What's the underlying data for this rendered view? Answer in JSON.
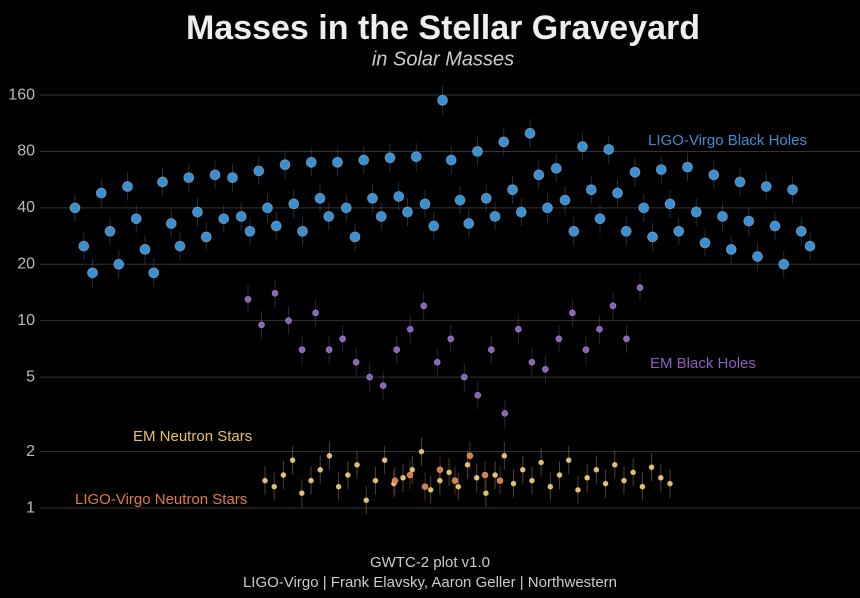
{
  "chart_data": {
    "type": "scatter",
    "title": "Masses in the Stellar Graveyard",
    "subtitle": "in Solar Masses",
    "footer": [
      "GWTC-2 plot v1.0",
      "LIGO-Virgo | Frank Elavsky, Aaron Geller | Northwestern"
    ],
    "yscale": "log",
    "ylim": [
      0.4,
      200
    ],
    "yticks": [
      1,
      2,
      5,
      10,
      20,
      40,
      80,
      160
    ],
    "grid": true,
    "series": [
      {
        "name": "LIGO-Virgo Black Holes",
        "color": "#3a8fd0",
        "values": [
          40,
          25,
          18,
          48,
          30,
          20,
          52,
          35,
          24,
          18,
          55,
          33,
          25,
          58,
          38,
          28,
          60,
          35,
          58,
          36,
          30,
          63,
          40,
          32,
          68,
          42,
          30,
          70,
          45,
          36,
          70,
          40,
          28,
          72,
          45,
          36,
          74,
          46,
          38,
          75,
          42,
          32,
          150,
          72,
          44,
          33,
          80,
          45,
          36,
          90,
          50,
          38,
          100,
          60,
          40,
          65,
          44,
          30,
          85,
          50,
          35,
          82,
          48,
          30,
          62,
          40,
          28,
          64,
          42,
          30,
          66,
          38,
          26,
          60,
          36,
          24,
          55,
          34,
          22,
          52,
          32,
          20,
          50,
          30,
          25
        ]
      },
      {
        "name": "EM Black Holes",
        "color": "#8a5fc0",
        "values": [
          13,
          9.5,
          14,
          10,
          7,
          11,
          7,
          8,
          6,
          5,
          4.5,
          7,
          9,
          12,
          6,
          8,
          5,
          4,
          7,
          3.2,
          9,
          6,
          5.5,
          8,
          11,
          7,
          9,
          12,
          8,
          15
        ]
      },
      {
        "name": "EM Neutron Stars",
        "color": "#e8c060",
        "values": [
          1.4,
          1.3,
          1.5,
          1.8,
          1.2,
          1.4,
          1.6,
          1.9,
          1.3,
          1.5,
          1.7,
          1.1,
          1.4,
          1.8,
          1.35,
          1.45,
          1.6,
          2.0,
          1.25,
          1.4,
          1.55,
          1.3,
          1.7,
          1.45,
          1.2,
          1.5,
          1.9,
          1.35,
          1.6,
          1.4,
          1.75,
          1.3,
          1.5,
          1.8,
          1.25,
          1.45,
          1.6,
          1.35,
          1.7,
          1.4,
          1.55,
          1.3,
          1.65,
          1.45,
          1.35
        ]
      },
      {
        "name": "LIGO-Virgo Neutron Stars",
        "color": "#e07a40",
        "values": [
          1.4,
          1.5,
          1.3,
          1.6,
          1.4,
          1.9,
          1.5,
          1.4
        ]
      }
    ]
  }
}
